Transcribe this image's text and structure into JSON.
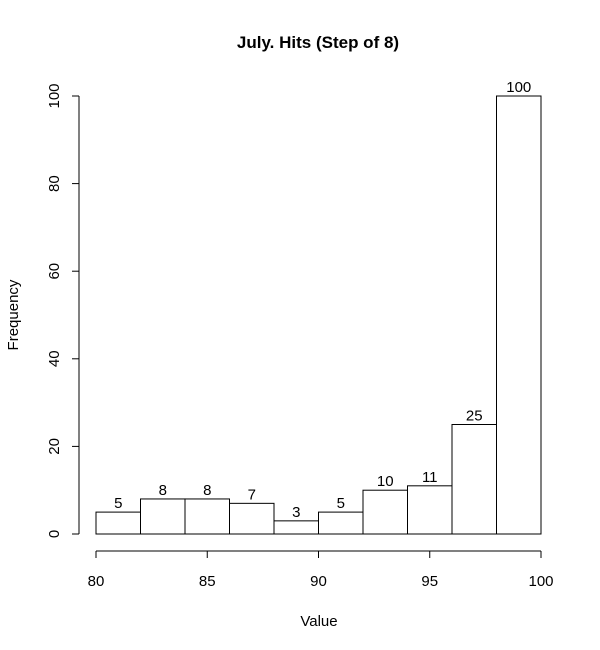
{
  "chart_data": {
    "type": "bar",
    "title": "July. Hits (Step of 8)",
    "xlabel": "Value",
    "ylabel": "Frequency",
    "bins": [
      {
        "start": 80,
        "end": 82,
        "count": 5
      },
      {
        "start": 82,
        "end": 84,
        "count": 8
      },
      {
        "start": 84,
        "end": 86,
        "count": 8
      },
      {
        "start": 86,
        "end": 88,
        "count": 7
      },
      {
        "start": 88,
        "end": 90,
        "count": 3
      },
      {
        "start": 90,
        "end": 92,
        "count": 5
      },
      {
        "start": 92,
        "end": 94,
        "count": 10
      },
      {
        "start": 94,
        "end": 96,
        "count": 11
      },
      {
        "start": 96,
        "end": 98,
        "count": 25
      },
      {
        "start": 98,
        "end": 100,
        "count": 100
      }
    ],
    "xlim": [
      80,
      100
    ],
    "ylim": [
      0,
      100
    ],
    "xticks": [
      80,
      85,
      90,
      95,
      100
    ],
    "yticks": [
      0,
      20,
      40,
      60,
      80,
      100
    ],
    "grid": false,
    "legend": "none",
    "bar_fill": "#ffffff",
    "bar_stroke": "#000000"
  }
}
